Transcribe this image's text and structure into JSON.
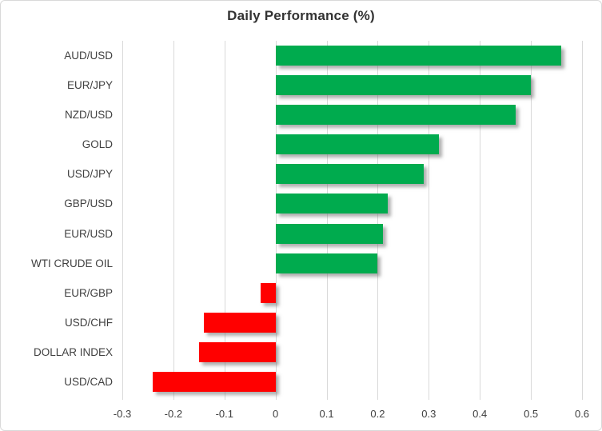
{
  "chart_data": {
    "type": "bar",
    "orientation": "horizontal",
    "title": "Daily Performance (%)",
    "categories": [
      "AUD/USD",
      "EUR/JPY",
      "NZD/USD",
      "GOLD",
      "USD/JPY",
      "GBP/USD",
      "EUR/USD",
      "WTI CRUDE OIL",
      "EUR/GBP",
      "USD/CHF",
      "DOLLAR INDEX",
      "USD/CAD"
    ],
    "values": [
      0.56,
      0.5,
      0.47,
      0.32,
      0.29,
      0.22,
      0.21,
      0.2,
      -0.03,
      -0.14,
      -0.15,
      -0.24
    ],
    "xlim": [
      -0.3,
      0.6
    ],
    "x_ticks": [
      -0.3,
      -0.2,
      -0.1,
      0,
      0.1,
      0.2,
      0.3,
      0.4,
      0.5,
      0.6
    ],
    "x_tick_labels": [
      "-0.3",
      "-0.2",
      "-0.1",
      "0",
      "0.1",
      "0.2",
      "0.3",
      "0.4",
      "0.5",
      "0.6"
    ],
    "grid": "vertical",
    "legend": "none",
    "xlabel": "",
    "ylabel": "",
    "colors": {
      "positive": "#00AB4E",
      "negative": "#FF0000",
      "gridline": "#D9D9D9",
      "text": "#404040",
      "title": "#333333",
      "border": "#D9D9D9",
      "background": "#FFFFFF"
    }
  }
}
